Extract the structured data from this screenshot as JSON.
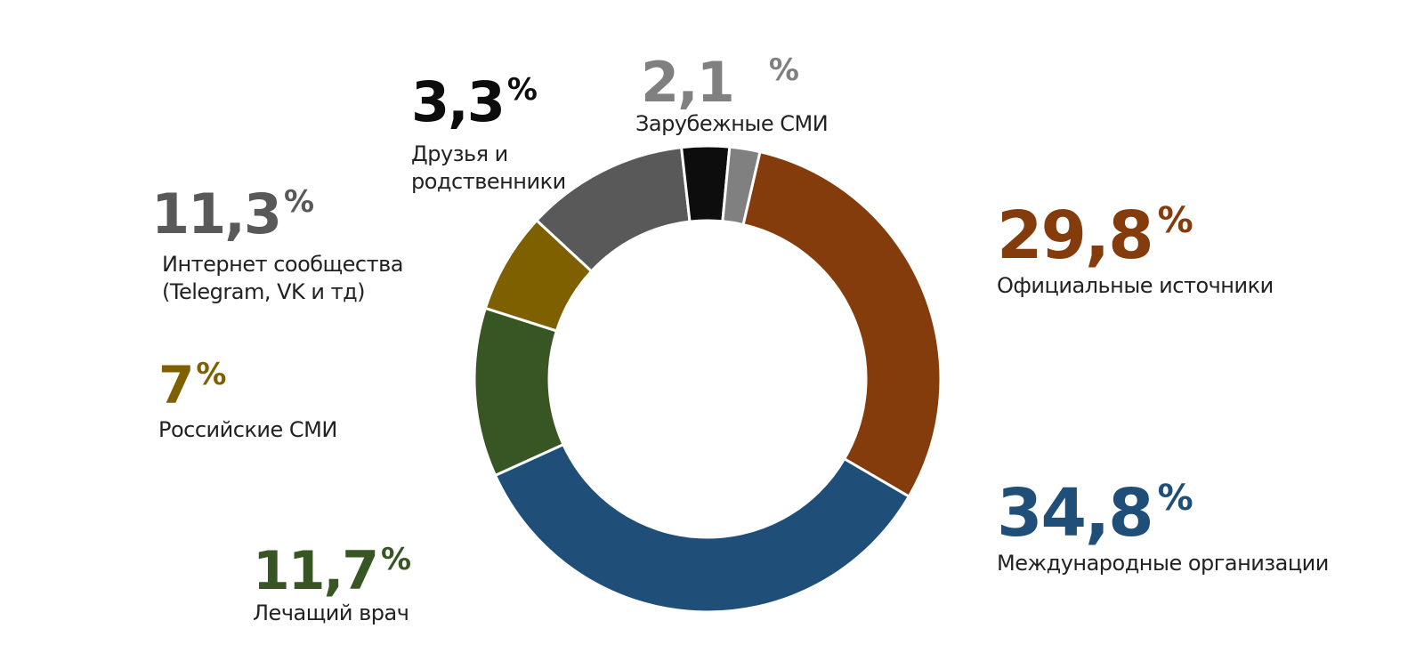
{
  "chart_data": {
    "type": "pie",
    "variant": "donut",
    "title": "",
    "legend": "none",
    "slices": [
      {
        "value": 29.8,
        "value_label": "29,8",
        "label": "Официальные источники",
        "color": "#843C0C"
      },
      {
        "value": 34.8,
        "value_label": "34,8",
        "label": "Международные организации",
        "color": "#1F4E79"
      },
      {
        "value": 11.7,
        "value_label": "11,7",
        "label": "Лечащий врач",
        "color": "#375623"
      },
      {
        "value": 7,
        "value_label": "7",
        "label": "Российские СМИ",
        "color": "#7F6000"
      },
      {
        "value": 11.3,
        "value_label": "11,3",
        "label": "Интернет сообщества\n(Telegram, VK и тд)",
        "color": "#595959"
      },
      {
        "value": 3.3,
        "value_label": "3,3",
        "label": "Друзья и\nродственники",
        "color": "#0D0D0D"
      },
      {
        "value": 2.1,
        "value_label": "2,1",
        "label": "Зарубежные СМИ",
        "color": "#808080"
      }
    ],
    "percent_sign": "%"
  }
}
